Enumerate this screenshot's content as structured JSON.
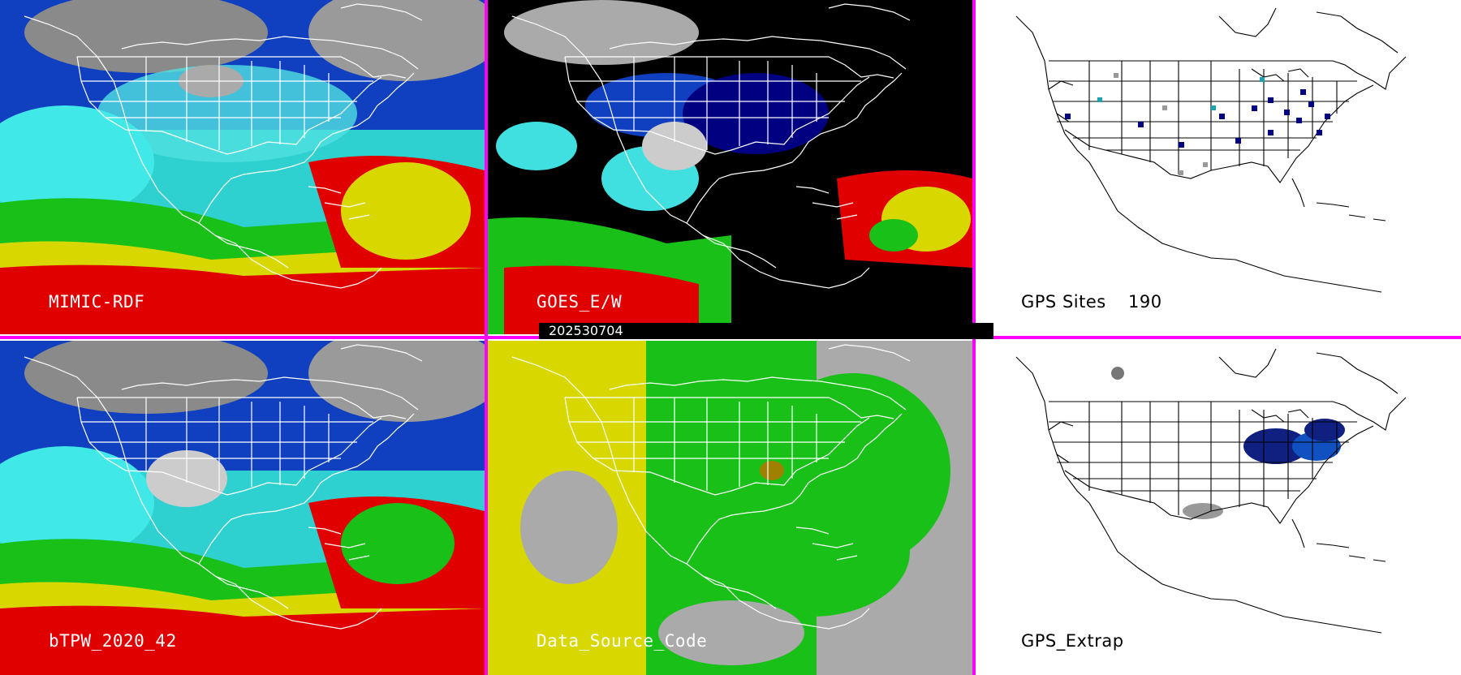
{
  "panels": [
    {
      "id": "mimic",
      "label": "MIMIC-RDF"
    },
    {
      "id": "goes",
      "label": "GOES_E/W"
    },
    {
      "id": "gps-sites",
      "label": "GPS Sites",
      "count": "190"
    },
    {
      "id": "btpw",
      "label": "bTPW_2020_42"
    },
    {
      "id": "dsc",
      "label": "Data_Source_Code"
    },
    {
      "id": "gps-extrap",
      "label": "GPS_Extrap"
    }
  ],
  "date": "202530704",
  "colors": {
    "separator": "#ff00ff",
    "red": "#e00000",
    "yellow": "#d8d800",
    "green": "#18c018",
    "cyan": "#40e0e0",
    "blue": "#1040c0",
    "darkblue": "#000080",
    "gray": "#aaaaaa"
  }
}
